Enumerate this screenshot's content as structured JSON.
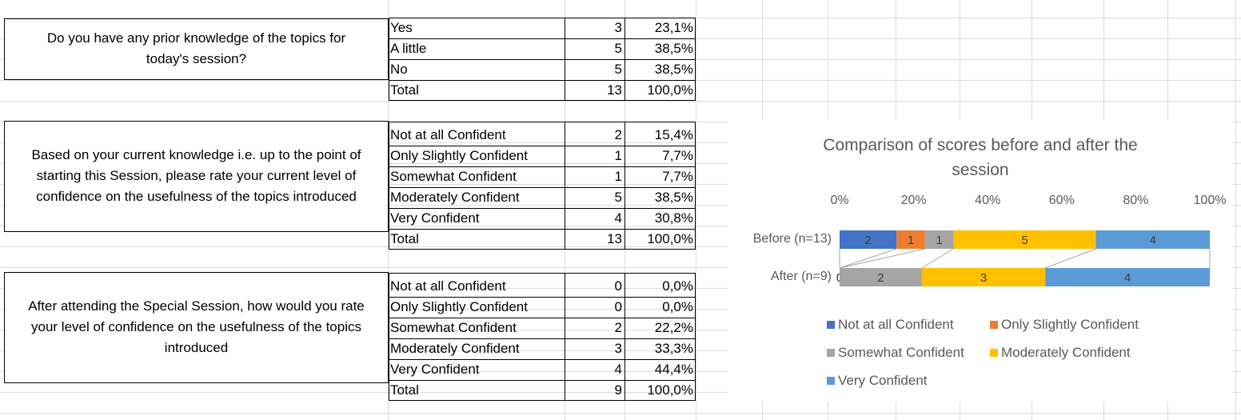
{
  "q1": {
    "question": [
      "Do you have any prior knowledge of the topics for",
      "today's session?"
    ],
    "rows": [
      {
        "label": "Yes",
        "count": "3",
        "pct": "23,1%"
      },
      {
        "label": "A little",
        "count": "5",
        "pct": "38,5%"
      },
      {
        "label": "No",
        "count": "5",
        "pct": "38,5%"
      },
      {
        "label": "Total",
        "count": "13",
        "pct": "100,0%"
      }
    ]
  },
  "q2": {
    "question": [
      "Based on your current knowledge i.e. up to the point of",
      "starting this Session, please rate your current level of",
      "confidence on the usefulness of the topics introduced"
    ],
    "rows": [
      {
        "label": "Not at all Confident",
        "count": "2",
        "pct": "15,4%"
      },
      {
        "label": "Only Slightly Confident",
        "count": "1",
        "pct": "7,7%"
      },
      {
        "label": "Somewhat Confident",
        "count": "1",
        "pct": "7,7%"
      },
      {
        "label": "Moderately Confident",
        "count": "5",
        "pct": "38,5%"
      },
      {
        "label": "Very Confident",
        "count": "4",
        "pct": "30,8%"
      },
      {
        "label": "Total",
        "count": "13",
        "pct": "100,0%"
      }
    ]
  },
  "q3": {
    "question": [
      "After attending the Special Session, how would you rate",
      "your level of confidence on the usefulness of the topics",
      "introduced"
    ],
    "rows": [
      {
        "label": "Not at all Confident",
        "count": "0",
        "pct": "0,0%"
      },
      {
        "label": "Only Slightly Confident",
        "count": "0",
        "pct": "0,0%"
      },
      {
        "label": "Somewhat Confident",
        "count": "2",
        "pct": "22,2%"
      },
      {
        "label": "Moderately Confident",
        "count": "3",
        "pct": "33,3%"
      },
      {
        "label": "Very Confident",
        "count": "4",
        "pct": "44,4%"
      },
      {
        "label": "Total",
        "count": "9",
        "pct": "100,0%"
      }
    ]
  },
  "chart_data": {
    "type": "bar",
    "orientation": "horizontal",
    "stacked": "percent",
    "title": "Comparison of scores before and after the session",
    "categories": [
      "Before (n=13)",
      "After (n=9)"
    ],
    "xaxis_ticks": [
      "0%",
      "20%",
      "40%",
      "60%",
      "80%",
      "100%"
    ],
    "xlim": [
      0,
      100
    ],
    "legend_position": "bottom",
    "series_lines": true,
    "series": [
      {
        "name": "Not at all Confident",
        "color": "#4472C4",
        "values": [
          2,
          0
        ]
      },
      {
        "name": "Only Slightly Confident",
        "color": "#ED7D31",
        "values": [
          1,
          0
        ]
      },
      {
        "name": "Somewhat Confident",
        "color": "#A5A5A5",
        "values": [
          1,
          2
        ]
      },
      {
        "name": "Moderately Confident",
        "color": "#FFC000",
        "values": [
          5,
          3
        ]
      },
      {
        "name": "Very Confident",
        "color": "#5B9BD5",
        "values": [
          4,
          4
        ]
      }
    ]
  }
}
